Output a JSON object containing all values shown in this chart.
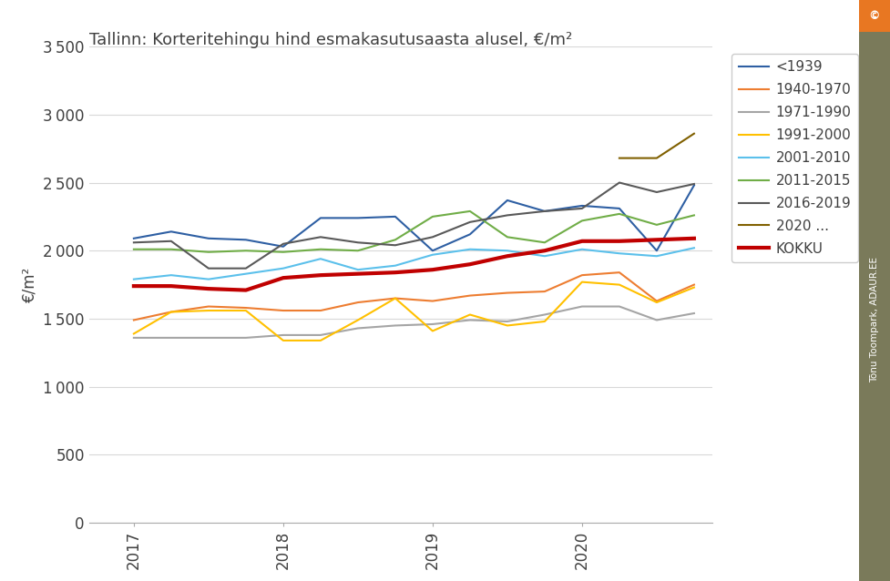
{
  "title": "Tallinn: Korteritehingu hind esmakasutusaasta alusel, €/m²",
  "ylabel": "€/m²",
  "background_color": "#ffffff",
  "ylim": [
    0,
    3500
  ],
  "yticks": [
    0,
    500,
    1000,
    1500,
    2000,
    2500,
    3000,
    3500
  ],
  "xtick_labels": [
    "2017",
    "2018",
    "2019",
    "2020"
  ],
  "xtick_positions": [
    2017,
    2018,
    2019,
    2020
  ],
  "xlim": [
    2016.7,
    2020.87
  ],
  "watermark_text": "© Tõnu Toompark, ADAUR.EE",
  "watermark_orange": "#e87722",
  "watermark_gray": "#7a7a5a",
  "series": [
    {
      "label": "<1939",
      "color": "#2e5fa3",
      "linewidth": 1.5,
      "data_x": [
        2017.0,
        2017.25,
        2017.5,
        2017.75,
        2018.0,
        2018.25,
        2018.5,
        2018.75,
        2019.0,
        2019.25,
        2019.5,
        2019.75,
        2020.0,
        2020.25,
        2020.5,
        2020.75
      ],
      "data_y": [
        2090,
        2140,
        2090,
        2080,
        2030,
        2240,
        2240,
        2250,
        2000,
        2120,
        2370,
        2290,
        2330,
        2310,
        2000,
        2480
      ]
    },
    {
      "label": "1940-1970",
      "color": "#ed7d31",
      "linewidth": 1.5,
      "data_x": [
        2017.0,
        2017.25,
        2017.5,
        2017.75,
        2018.0,
        2018.25,
        2018.5,
        2018.75,
        2019.0,
        2019.25,
        2019.5,
        2019.75,
        2020.0,
        2020.25,
        2020.5,
        2020.75
      ],
      "data_y": [
        1490,
        1550,
        1590,
        1580,
        1560,
        1560,
        1620,
        1650,
        1630,
        1670,
        1690,
        1700,
        1820,
        1840,
        1630,
        1750
      ]
    },
    {
      "label": "1971-1990",
      "color": "#a5a5a5",
      "linewidth": 1.5,
      "data_x": [
        2017.0,
        2017.25,
        2017.5,
        2017.75,
        2018.0,
        2018.25,
        2018.5,
        2018.75,
        2019.0,
        2019.25,
        2019.5,
        2019.75,
        2020.0,
        2020.25,
        2020.5,
        2020.75
      ],
      "data_y": [
        1360,
        1360,
        1360,
        1360,
        1380,
        1380,
        1430,
        1450,
        1460,
        1490,
        1480,
        1530,
        1590,
        1590,
        1490,
        1540
      ]
    },
    {
      "label": "1991-2000",
      "color": "#ffc000",
      "linewidth": 1.5,
      "data_x": [
        2017.0,
        2017.25,
        2017.5,
        2017.75,
        2018.0,
        2018.25,
        2018.5,
        2018.75,
        2019.0,
        2019.25,
        2019.5,
        2019.75,
        2020.0,
        2020.25,
        2020.5,
        2020.75
      ],
      "data_y": [
        1390,
        1550,
        1560,
        1560,
        1340,
        1340,
        1490,
        1650,
        1410,
        1530,
        1450,
        1480,
        1770,
        1750,
        1620,
        1730
      ]
    },
    {
      "label": "2001-2010",
      "color": "#5bc0eb",
      "linewidth": 1.5,
      "data_x": [
        2017.0,
        2017.25,
        2017.5,
        2017.75,
        2018.0,
        2018.25,
        2018.5,
        2018.75,
        2019.0,
        2019.25,
        2019.5,
        2019.75,
        2020.0,
        2020.25,
        2020.5,
        2020.75
      ],
      "data_y": [
        1790,
        1820,
        1790,
        1830,
        1870,
        1940,
        1860,
        1890,
        1970,
        2010,
        2000,
        1960,
        2010,
        1980,
        1960,
        2020
      ]
    },
    {
      "label": "2011-2015",
      "color": "#70ad47",
      "linewidth": 1.5,
      "data_x": [
        2017.0,
        2017.25,
        2017.5,
        2017.75,
        2018.0,
        2018.25,
        2018.5,
        2018.75,
        2019.0,
        2019.25,
        2019.5,
        2019.75,
        2020.0,
        2020.25,
        2020.5,
        2020.75
      ],
      "data_y": [
        2010,
        2010,
        1990,
        2000,
        1990,
        2010,
        2000,
        2080,
        2250,
        2290,
        2100,
        2060,
        2220,
        2270,
        2190,
        2260
      ]
    },
    {
      "label": "2016-2019",
      "color": "#595959",
      "linewidth": 1.5,
      "data_x": [
        2017.0,
        2017.25,
        2017.5,
        2017.75,
        2018.0,
        2018.25,
        2018.5,
        2018.75,
        2019.0,
        2019.25,
        2019.5,
        2019.75,
        2020.0,
        2020.25,
        2020.5,
        2020.75
      ],
      "data_y": [
        2060,
        2070,
        1870,
        1870,
        2050,
        2100,
        2060,
        2040,
        2100,
        2210,
        2260,
        2290,
        2310,
        2500,
        2430,
        2490
      ]
    },
    {
      "label": "2020 ...",
      "color": "#806000",
      "linewidth": 1.5,
      "data_x": [
        2020.25,
        2020.5,
        2020.75
      ],
      "data_y": [
        2680,
        2680,
        2860
      ]
    },
    {
      "label": "KOKKU",
      "color": "#c00000",
      "linewidth": 3.0,
      "data_x": [
        2017.0,
        2017.25,
        2017.5,
        2017.75,
        2018.0,
        2018.25,
        2018.5,
        2018.75,
        2019.0,
        2019.25,
        2019.5,
        2019.75,
        2020.0,
        2020.25,
        2020.5,
        2020.75
      ],
      "data_y": [
        1740,
        1740,
        1720,
        1710,
        1800,
        1820,
        1830,
        1840,
        1860,
        1900,
        1960,
        2000,
        2070,
        2070,
        2080,
        2090
      ]
    }
  ]
}
